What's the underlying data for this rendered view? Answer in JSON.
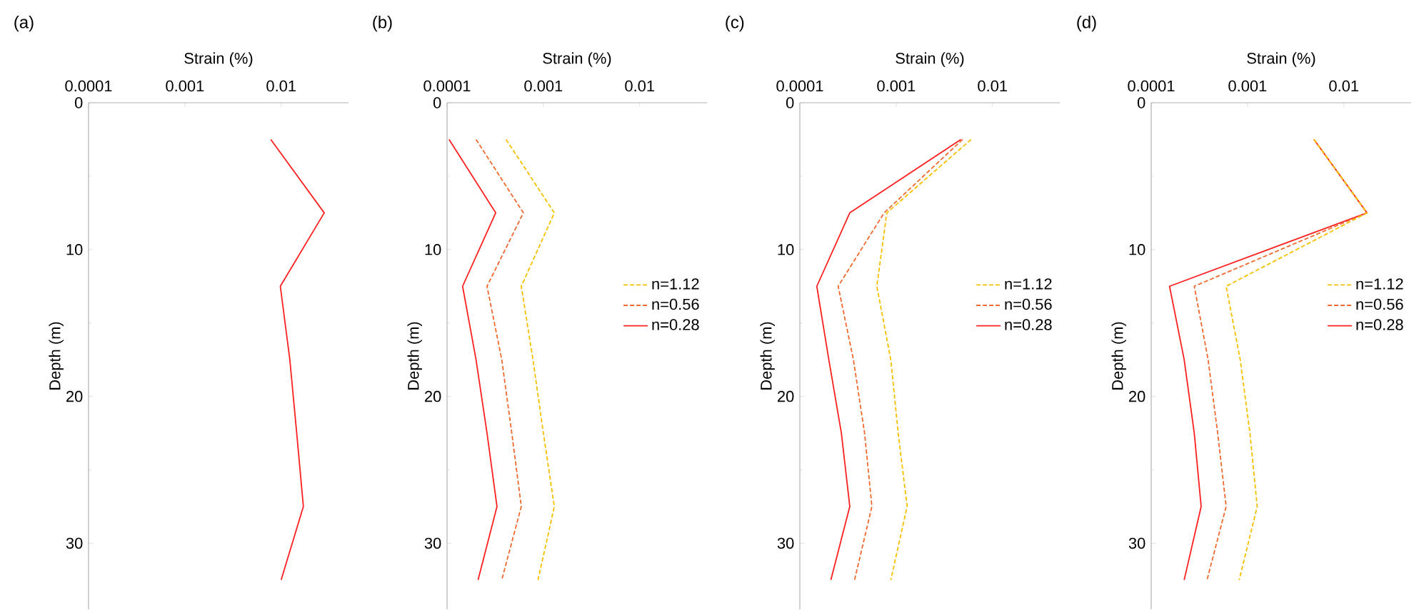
{
  "chart_data": [
    {
      "type": "line",
      "title": "(a)",
      "xlabel": "Strain (%)",
      "ylabel": "Depth (m)",
      "log": "x",
      "xlim": [
        0.0001,
        0.05
      ],
      "xticks": [
        0.0001,
        0.001,
        0.01
      ],
      "ylim": [
        34.5,
        0
      ],
      "yticks": [
        0,
        10,
        20,
        30
      ],
      "legend": false,
      "series": [
        {
          "color": "#ff2020",
          "line_style": "solid",
          "x": [
            0.0078,
            0.028,
            0.0098,
            0.0123,
            0.0145,
            0.017,
            0.01
          ],
          "values": [
            2.5,
            7.5,
            12.5,
            17.5,
            22.5,
            27.5,
            32.5
          ]
        }
      ]
    },
    {
      "type": "line",
      "title": "(b)",
      "xlabel": "Strain (%)",
      "ylabel": "Depth (m)",
      "log": "x",
      "xlim": [
        0.0001,
        0.05
      ],
      "xticks": [
        0.0001,
        0.001,
        0.01
      ],
      "ylim": [
        34.5,
        0
      ],
      "yticks": [
        0,
        10,
        20,
        30
      ],
      "legend": "right",
      "series": [
        {
          "name": "n=1.12",
          "color": "#f5c000",
          "line_style": "dashed",
          "x": [
            0.00041,
            0.0013,
            0.00059,
            0.00078,
            0.001,
            0.0013,
            0.00088
          ],
          "values": [
            2.5,
            7.5,
            12.5,
            17.5,
            22.5,
            27.5,
            32.5
          ]
        },
        {
          "name": "n=0.56",
          "color": "#f06a30",
          "line_style": "dashed",
          "x": [
            0.0002,
            0.00062,
            0.00026,
            0.00037,
            0.00047,
            0.00059,
            0.00037
          ],
          "values": [
            2.5,
            7.5,
            12.5,
            17.5,
            22.5,
            27.5,
            32.5
          ]
        },
        {
          "name": "n=0.28",
          "color": "#ff2020",
          "line_style": "solid",
          "x": [
            0.000105,
            0.00032,
            0.000145,
            0.0002,
            0.00026,
            0.00033,
            0.00021
          ],
          "values": [
            2.5,
            7.5,
            12.5,
            17.5,
            22.5,
            27.5,
            32.5
          ]
        }
      ]
    },
    {
      "type": "line",
      "title": "(c)",
      "xlabel": "Strain (%)",
      "ylabel": "Depth (m)",
      "log": "x",
      "xlim": [
        0.0001,
        0.05
      ],
      "xticks": [
        0.0001,
        0.001,
        0.01
      ],
      "ylim": [
        34.5,
        0
      ],
      "yticks": [
        0,
        10,
        20,
        30
      ],
      "legend": "right",
      "series": [
        {
          "name": "n=1.12",
          "color": "#f5c000",
          "line_style": "dashed",
          "x": [
            0.006,
            0.0008,
            0.00063,
            0.00088,
            0.00105,
            0.0013,
            0.00088
          ],
          "values": [
            2.5,
            7.5,
            12.5,
            17.5,
            22.5,
            27.5,
            32.5
          ]
        },
        {
          "name": "n=0.56",
          "color": "#f06a30",
          "line_style": "dashed",
          "x": [
            0.0049,
            0.00075,
            0.00025,
            0.00036,
            0.00047,
            0.00056,
            0.00037
          ],
          "values": [
            2.5,
            7.5,
            12.5,
            17.5,
            22.5,
            27.5,
            32.5
          ]
        },
        {
          "name": "n=0.28",
          "color": "#ff2020",
          "line_style": "solid",
          "x": [
            0.0047,
            0.00033,
            0.00015,
            0.0002,
            0.00027,
            0.00033,
            0.00021
          ],
          "values": [
            2.5,
            7.5,
            12.5,
            17.5,
            22.5,
            27.5,
            32.5
          ]
        }
      ]
    },
    {
      "type": "line",
      "title": "(d)",
      "xlabel": "Strain (%)",
      "ylabel": "Depth (m)",
      "log": "x",
      "xlim": [
        0.0001,
        0.05
      ],
      "xticks": [
        0.0001,
        0.001,
        0.01
      ],
      "ylim": [
        34.5,
        0
      ],
      "yticks": [
        0,
        10,
        20,
        30
      ],
      "legend": "right",
      "series": [
        {
          "name": "n=1.12",
          "color": "#f5c000",
          "line_style": "dashed",
          "x": [
            0.0049,
            0.0174,
            0.0006,
            0.00084,
            0.00106,
            0.00126,
            0.00082
          ],
          "values": [
            2.5,
            7.5,
            12.5,
            17.5,
            22.5,
            27.5,
            32.5
          ]
        },
        {
          "name": "n=0.56",
          "color": "#f06a30",
          "line_style": "dashed",
          "x": [
            0.0049,
            0.0174,
            0.00028,
            0.00039,
            0.00049,
            0.0006,
            0.00038
          ],
          "values": [
            2.5,
            7.5,
            12.5,
            17.5,
            22.5,
            27.5,
            32.5
          ]
        },
        {
          "name": "n=0.28",
          "color": "#ff2020",
          "line_style": "solid",
          "x": [
            0.0049,
            0.0174,
            0.000155,
            0.00022,
            0.00028,
            0.00033,
            0.00022
          ],
          "values": [
            2.5,
            7.5,
            12.5,
            17.5,
            22.5,
            27.5,
            32.5
          ]
        }
      ]
    }
  ]
}
